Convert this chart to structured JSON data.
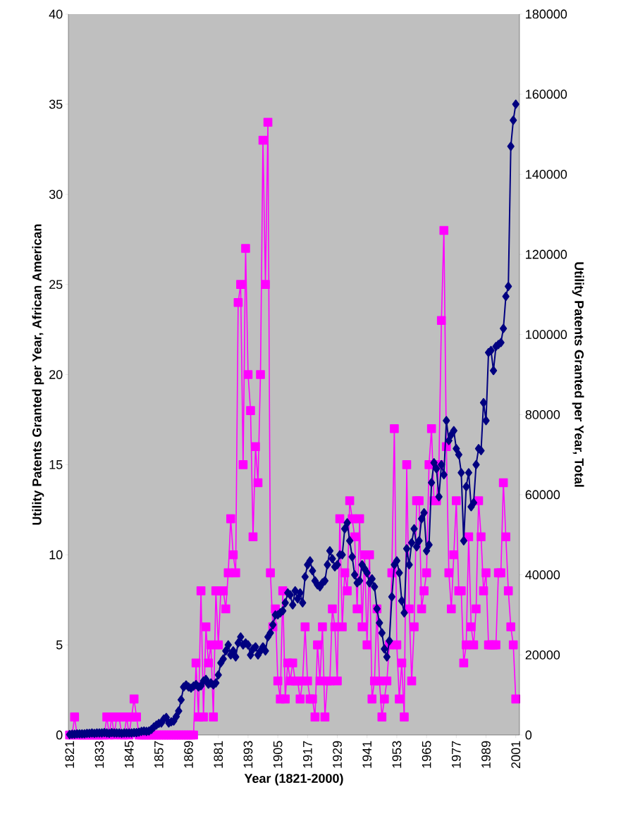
{
  "chart_data": {
    "type": "line",
    "xlabel": "Year (1821-2000)",
    "ylabel": "Utility Patents Granted per Year, African American",
    "y2label": "Utility Patents Granted per Year, Total",
    "x": [
      1821,
      1822,
      1823,
      1824,
      1825,
      1826,
      1827,
      1828,
      1829,
      1830,
      1831,
      1832,
      1833,
      1834,
      1835,
      1836,
      1837,
      1838,
      1839,
      1840,
      1841,
      1842,
      1843,
      1844,
      1845,
      1846,
      1847,
      1848,
      1849,
      1850,
      1851,
      1852,
      1853,
      1854,
      1855,
      1856,
      1857,
      1858,
      1859,
      1860,
      1861,
      1862,
      1863,
      1864,
      1865,
      1866,
      1867,
      1868,
      1869,
      1870,
      1871,
      1872,
      1873,
      1874,
      1875,
      1876,
      1877,
      1878,
      1879,
      1880,
      1881,
      1882,
      1883,
      1884,
      1885,
      1886,
      1887,
      1888,
      1889,
      1890,
      1891,
      1892,
      1893,
      1894,
      1895,
      1896,
      1897,
      1898,
      1899,
      1900,
      1901,
      1902,
      1903,
      1904,
      1905,
      1906,
      1907,
      1908,
      1909,
      1910,
      1911,
      1912,
      1913,
      1914,
      1915,
      1916,
      1917,
      1918,
      1919,
      1920,
      1921,
      1922,
      1923,
      1924,
      1925,
      1926,
      1927,
      1928,
      1929,
      1930,
      1931,
      1932,
      1933,
      1934,
      1935,
      1936,
      1937,
      1938,
      1939,
      1940,
      1941,
      1942,
      1943,
      1944,
      1945,
      1946,
      1947,
      1948,
      1949,
      1950,
      1951,
      1952,
      1953,
      1954,
      1955,
      1956,
      1957,
      1958,
      1959,
      1960,
      1961,
      1962,
      1963,
      1964,
      1965,
      1966,
      1967,
      1968,
      1969,
      1970,
      1971,
      1972,
      1973,
      1974,
      1975,
      1976,
      1977,
      1978,
      1979,
      1980,
      1981,
      1982,
      1983,
      1984,
      1985,
      1986,
      1987,
      1988,
      1989,
      1990,
      1991,
      1992,
      1993,
      1994,
      1995,
      1996,
      1997,
      1998,
      1999,
      2000,
      2001
    ],
    "xlim": [
      1820.5,
      2002.5
    ],
    "xticks": [
      1821,
      1833,
      1845,
      1857,
      1869,
      1881,
      1893,
      1905,
      1917,
      1929,
      1941,
      1953,
      1965,
      1977,
      1989,
      2001
    ],
    "ylim": [
      0,
      40
    ],
    "yticks": [
      0,
      5,
      10,
      15,
      20,
      25,
      30,
      35,
      40
    ],
    "y2lim": [
      0,
      180000
    ],
    "y2ticks": [
      0,
      20000,
      40000,
      60000,
      80000,
      100000,
      120000,
      140000,
      160000,
      180000
    ],
    "series": [
      {
        "color": "#ff00ff",
        "marker": "square",
        "axis": "y",
        "values": [
          0,
          0,
          1,
          0,
          0,
          0,
          0,
          0,
          0,
          0,
          0,
          0,
          0,
          0,
          0,
          1,
          0,
          1,
          0,
          1,
          1,
          0,
          0,
          1,
          0,
          1,
          2,
          1,
          0,
          0,
          0,
          0,
          0,
          0,
          0,
          0,
          0,
          0,
          0,
          0,
          0,
          0,
          0,
          0,
          0,
          0,
          0,
          0,
          0,
          0,
          0,
          4,
          1,
          8,
          1,
          6,
          4,
          5,
          1,
          8,
          5,
          8,
          8,
          7,
          9,
          12,
          10,
          9,
          24,
          25,
          15,
          27,
          20,
          18,
          11,
          16,
          14,
          20,
          33,
          25,
          34,
          9,
          6,
          7,
          3,
          2,
          8,
          2,
          4,
          3,
          4,
          3,
          3,
          2,
          3,
          6,
          3,
          2,
          2,
          1,
          5,
          3,
          6,
          1,
          3,
          3,
          7,
          6,
          3,
          12,
          6,
          9,
          8,
          13,
          12,
          11,
          7,
          12,
          6,
          10,
          5,
          10,
          2,
          3,
          7,
          3,
          1,
          2,
          3,
          5,
          9,
          17,
          5,
          2,
          4,
          1,
          15,
          7,
          3,
          6,
          13,
          13,
          7,
          8,
          9,
          15,
          17,
          13,
          13,
          15,
          23,
          28,
          16,
          9,
          7,
          10,
          13,
          8,
          8,
          4,
          5,
          11,
          6,
          5,
          7,
          13,
          11,
          8,
          9,
          5,
          5,
          5,
          5,
          9,
          9,
          14,
          11,
          8,
          6,
          5,
          2
        ]
      },
      {
        "color": "#000080",
        "marker": "diamond",
        "axis": "y2",
        "values": [
          100,
          200,
          200,
          300,
          300,
          300,
          300,
          400,
          400,
          500,
          400,
          500,
          500,
          500,
          600,
          500,
          400,
          600,
          500,
          500,
          500,
          400,
          500,
          500,
          500,
          500,
          600,
          600,
          700,
          900,
          1000,
          900,
          1000,
          1400,
          2000,
          2500,
          2900,
          3000,
          4000,
          4400,
          3000,
          3300,
          3500,
          4600,
          6000,
          8800,
          12000,
          12500,
          12000,
          11700,
          12200,
          12600,
          12000,
          12300,
          13500,
          13900,
          12700,
          13000,
          12500,
          13000,
          15000,
          18000,
          19000,
          21000,
          22500,
          20000,
          21000,
          19500,
          23000,
          24500,
          22500,
          23000,
          22500,
          20000,
          21500,
          22000,
          20000,
          21000,
          22000,
          21000,
          24500,
          25500,
          27500,
          30000,
          30000,
          30500,
          31000,
          33000,
          35500,
          35000,
          32500,
          36000,
          34000,
          35500,
          33000,
          39500,
          42500,
          43500,
          41000,
          38500,
          37500,
          37000,
          38000,
          38500,
          42500,
          46000,
          44000,
          42000,
          42500,
          45000,
          45000,
          51500,
          53000,
          48500,
          44500,
          40000,
          38000,
          38500,
          42500,
          41500,
          40500,
          38000,
          39000,
          37000,
          31500,
          28000,
          25500,
          21500,
          19500,
          23500,
          34500,
          42500,
          43500,
          40500,
          33500,
          30500,
          46500,
          42500,
          48000,
          51500,
          47000,
          48500,
          54000,
          55500,
          46000,
          47500,
          63000,
          68000,
          66500,
          59500,
          67500,
          65000,
          78500,
          73500,
          75000,
          76000,
          71500,
          70000,
          65500,
          48500,
          62000,
          65500,
          57000,
          58000,
          67500,
          71500,
          71000,
          83000,
          78500,
          95500,
          96000,
          91000,
          97000,
          97500,
          98000,
          101500,
          109500,
          112000,
          147000,
          153500,
          157500
        ]
      }
    ]
  }
}
